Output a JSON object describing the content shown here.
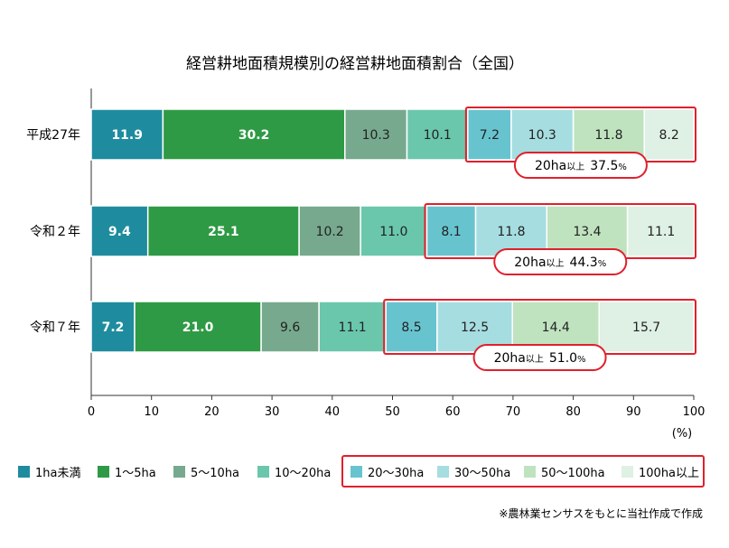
{
  "chart_data": {
    "type": "bar",
    "orientation": "horizontal",
    "stacked": true,
    "title": "経営耕地面積規模別の経営耕地面積割合（全国）",
    "categories": [
      "平成27年",
      "令和２年",
      "令和７年"
    ],
    "series": [
      {
        "name": "1ha未満",
        "color": "#1e8c9e",
        "values": [
          11.9,
          9.4,
          7.2
        ]
      },
      {
        "name": "1～5ha",
        "color": "#2f9a45",
        "values": [
          30.2,
          25.1,
          21.0
        ]
      },
      {
        "name": "5～10ha",
        "color": "#76a98d",
        "values": [
          10.3,
          10.2,
          9.6
        ]
      },
      {
        "name": "10～20ha",
        "color": "#6ac7ac",
        "values": [
          10.1,
          11.0,
          11.1
        ]
      },
      {
        "name": "20～30ha",
        "color": "#67c4cf",
        "values": [
          7.2,
          8.1,
          8.5
        ]
      },
      {
        "name": "30～50ha",
        "color": "#a6dde0",
        "values": [
          10.3,
          11.8,
          12.5
        ]
      },
      {
        "name": "50～100ha",
        "color": "#bfe3bf",
        "values": [
          11.8,
          13.4,
          14.4
        ]
      },
      {
        "name": "100ha以上",
        "color": "#dff0e4",
        "values": [
          8.2,
          11.1,
          15.7
        ]
      }
    ],
    "xlim": [
      0,
      100
    ],
    "xticks": [
      "0",
      "10",
      "20",
      "30",
      "40",
      "50",
      "60",
      "70",
      "80",
      "90",
      "100"
    ],
    "xlabel": "(%)",
    "highlight_start_series": 4,
    "highlight_color": "#e0202c",
    "annotations": [
      {
        "label": "20ha",
        "small": "以上",
        "value": "37.5",
        "unit": "%"
      },
      {
        "label": "20ha",
        "small": "以上",
        "value": "44.3",
        "unit": "%"
      },
      {
        "label": "20ha",
        "small": "以上",
        "value": "51.0",
        "unit": "%"
      }
    ],
    "legend_position": "bottom",
    "dark_label_series": [
      2,
      3,
      4,
      5,
      6,
      7
    ]
  },
  "note": "※農林業センサスをもとに当社作成で作成"
}
